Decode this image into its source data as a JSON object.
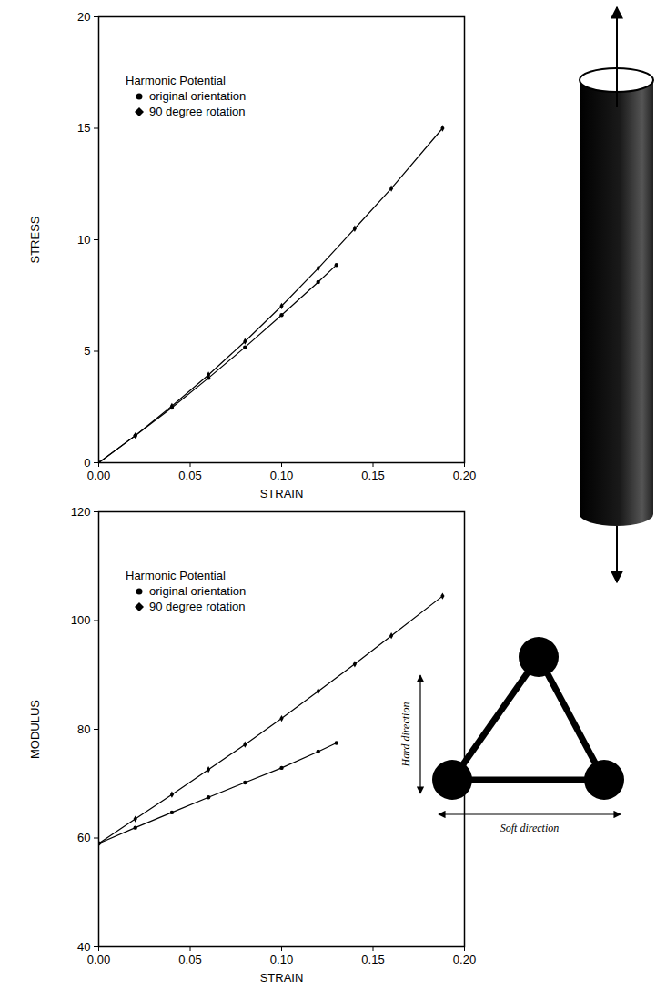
{
  "chart_data": [
    {
      "type": "line",
      "x_label": "STRAIN",
      "y_label": "STRESS",
      "legend_title": "Harmonic Potential",
      "legend": "top-left",
      "xlim": [
        0,
        0.2
      ],
      "xticks": [
        {
          "value": 0,
          "label": "0.00"
        },
        {
          "value": 0.05,
          "label": "0.05"
        },
        {
          "value": 0.1,
          "label": "0.10"
        },
        {
          "value": 0.15,
          "label": "0.15"
        },
        {
          "value": 0.2,
          "label": "0.20"
        }
      ],
      "ylim": [
        0,
        20
      ],
      "yticks": [
        0,
        5,
        10,
        15,
        20
      ],
      "series": [
        {
          "name": "original orientation",
          "color": "#000000",
          "marker": "circle",
          "x": [
            0,
            0.02,
            0.04,
            0.06,
            0.08,
            0.1,
            0.12,
            0.13
          ],
          "values": [
            0,
            1.21,
            2.47,
            3.8,
            5.18,
            6.62,
            8.1,
            8.87
          ]
        },
        {
          "name": "90 degree rotation",
          "color": "#000000",
          "marker": "diamond",
          "x": [
            0,
            0.02,
            0.04,
            0.06,
            0.08,
            0.1,
            0.12,
            0.14,
            0.16,
            0.188
          ],
          "values": [
            0,
            1.22,
            2.54,
            3.94,
            5.44,
            7.03,
            8.72,
            10.5,
            12.3,
            15.0
          ]
        }
      ]
    },
    {
      "type": "line",
      "x_label": "STRAIN",
      "y_label": "MODULUS",
      "legend_title": "Harmonic Potential",
      "legend": "top-left",
      "xlim": [
        0,
        0.2
      ],
      "xticks": [
        {
          "value": 0,
          "label": "0.00"
        },
        {
          "value": 0.05,
          "label": "0.05"
        },
        {
          "value": 0.1,
          "label": "0.10"
        },
        {
          "value": 0.15,
          "label": "0.15"
        },
        {
          "value": 0.2,
          "label": "0.20"
        }
      ],
      "ylim": [
        40,
        120
      ],
      "yticks": [
        40,
        60,
        80,
        100,
        120
      ],
      "annotations": [
        "Hard direction",
        "Soft direction"
      ],
      "series": [
        {
          "name": "original orientation",
          "color": "#000000",
          "marker": "circle",
          "x": [
            0,
            0.02,
            0.04,
            0.06,
            0.08,
            0.1,
            0.12,
            0.13
          ],
          "values": [
            59,
            61.9,
            64.7,
            67.5,
            70.2,
            72.9,
            75.9,
            77.5
          ]
        },
        {
          "name": "90 degree rotation",
          "color": "#000000",
          "marker": "diamond",
          "x": [
            0,
            0.02,
            0.04,
            0.06,
            0.08,
            0.1,
            0.12,
            0.14,
            0.16,
            0.188
          ],
          "values": [
            59,
            63.5,
            68,
            72.6,
            77.2,
            82,
            87,
            92,
            97.2,
            104.5
          ]
        }
      ]
    }
  ]
}
